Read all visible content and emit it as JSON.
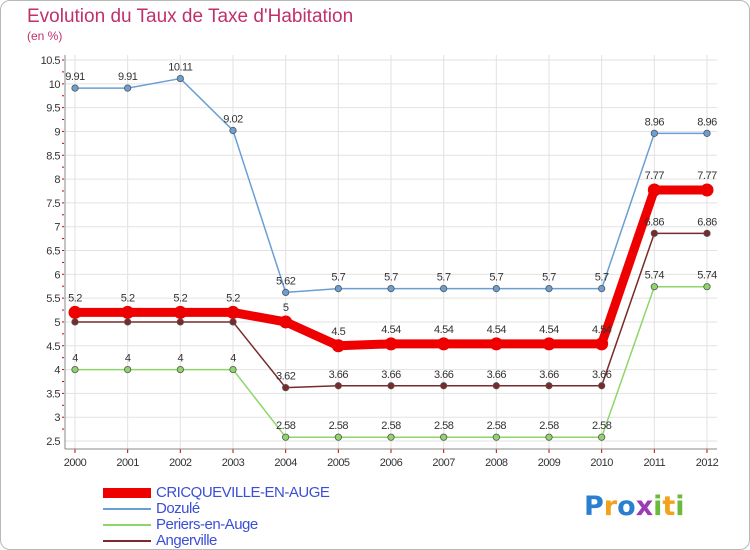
{
  "title": "Evolution du Taux de Taxe d'Habitation",
  "subtitle": "(en %)",
  "logo": {
    "letters": [
      "P",
      "r",
      "o",
      "x",
      "i",
      "t",
      "i"
    ],
    "colors": [
      "#2b7fd1",
      "#f2a21b",
      "#2b7fd1",
      "#9c3bb6",
      "#6aba3b",
      "#f2a21b",
      "#6aba3b"
    ]
  },
  "chart_data": {
    "type": "line",
    "title": "Evolution du Taux de Taxe d'Habitation",
    "subtitle": "(en %)",
    "xlabel": "",
    "ylabel": "",
    "x": [
      "2000",
      "2001",
      "2002",
      "2003",
      "2004",
      "2005",
      "2006",
      "2007",
      "2008",
      "2009",
      "2010",
      "2011",
      "2012"
    ],
    "ylim": [
      2.5,
      10.5
    ],
    "yticks": [
      "2.5",
      "3",
      "3.5",
      "4",
      "4.5",
      "5",
      "5.5",
      "6",
      "6.5",
      "7",
      "7.5",
      "8",
      "8.5",
      "9",
      "9.5",
      "10",
      "10.5"
    ],
    "grid": true,
    "legend_position": "bottom-left",
    "series": [
      {
        "name": "CRICQUEVILLE-EN-AUGE",
        "color": "#ee0000",
        "emphasis": true,
        "values": [
          5.2,
          5.2,
          5.2,
          5.2,
          5,
          4.5,
          4.54,
          4.54,
          4.54,
          4.54,
          4.54,
          7.77,
          7.77
        ],
        "labels": [
          "5.2",
          "5.2",
          "5.2",
          "5.2",
          "5",
          "4.5",
          "4.54",
          "4.54",
          "4.54",
          "4.54",
          "4.54",
          "7.77",
          "7.77"
        ]
      },
      {
        "name": "Dozulé",
        "color": "#6a9fd3",
        "emphasis": false,
        "values": [
          9.91,
          9.91,
          10.11,
          9.02,
          5.62,
          5.7,
          5.7,
          5.7,
          5.7,
          5.7,
          5.7,
          8.96,
          8.96
        ],
        "labels": [
          "9.91",
          "9.91",
          "10.11",
          "9.02",
          "5.62",
          "5.7",
          "5.7",
          "5.7",
          "5.7",
          "5.7",
          "5.7",
          "8.96",
          "8.96"
        ]
      },
      {
        "name": "Periers-en-Auge",
        "color": "#8fd66a",
        "emphasis": false,
        "values": [
          4,
          4,
          4,
          4,
          2.58,
          2.58,
          2.58,
          2.58,
          2.58,
          2.58,
          2.58,
          5.74,
          5.74
        ],
        "labels": [
          "4",
          "4",
          "4",
          "4",
          "2.58",
          "2.58",
          "2.58",
          "2.58",
          "2.58",
          "2.58",
          "2.58",
          "5.74",
          "5.74"
        ]
      },
      {
        "name": "Angerville",
        "color": "#7a2a2a",
        "emphasis": false,
        "values": [
          5,
          5,
          5,
          5,
          3.62,
          3.66,
          3.66,
          3.66,
          3.66,
          3.66,
          3.66,
          6.86,
          6.86
        ],
        "labels": [
          "",
          "",
          "",
          "",
          "3.62",
          "3.66",
          "3.66",
          "3.66",
          "3.66",
          "3.66",
          "3.66",
          "6.86",
          "6.86"
        ]
      }
    ]
  }
}
